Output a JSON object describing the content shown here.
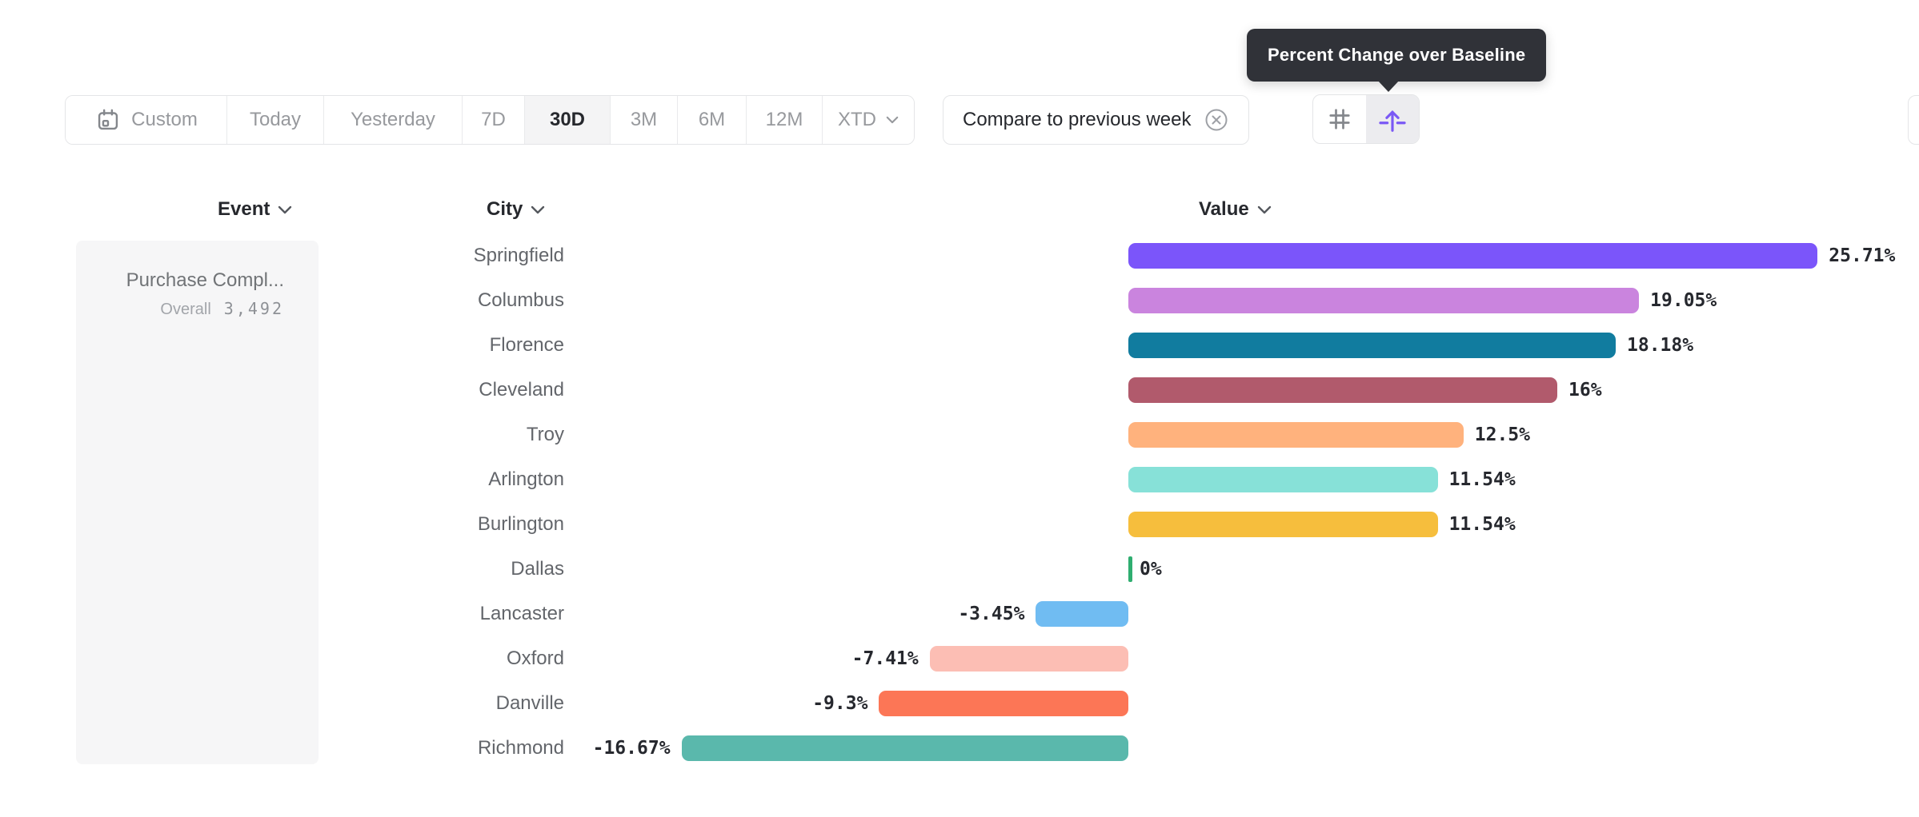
{
  "tooltip": {
    "text": "Percent Change over Baseline"
  },
  "toolbar": {
    "date_ranges": [
      {
        "label": "Custom",
        "icon": "calendar"
      },
      {
        "label": "Today"
      },
      {
        "label": "Yesterday"
      },
      {
        "label": "7D"
      },
      {
        "label": "30D",
        "active": true
      },
      {
        "label": "3M"
      },
      {
        "label": "6M"
      },
      {
        "label": "12M"
      },
      {
        "label": "XTD",
        "chevron": true
      }
    ],
    "active_range": "30D",
    "compare": {
      "label": "Compare to previous week",
      "close_icon": "circle-x"
    },
    "view_toggles": [
      {
        "name": "grid-view",
        "icon": "hash",
        "active": false
      },
      {
        "name": "percent-change-over-baseline",
        "icon": "arrow-up-from-baseline",
        "active": true
      }
    ]
  },
  "columns": {
    "event": "Event",
    "city": "City",
    "value": "Value"
  },
  "event_panel": {
    "title": "Purchase Compl...",
    "overall_label": "Overall",
    "overall_value": "3,492"
  },
  "chart_data": {
    "type": "bar",
    "orientation": "horizontal",
    "title": "Percent Change over Baseline",
    "value_unit": "%",
    "baseline": 0,
    "categories": [
      "Springfield",
      "Columbus",
      "Florence",
      "Cleveland",
      "Troy",
      "Arlington",
      "Burlington",
      "Dallas",
      "Lancaster",
      "Oxford",
      "Danville",
      "Richmond"
    ],
    "values": [
      25.71,
      19.05,
      18.18,
      16,
      12.5,
      11.54,
      11.54,
      0,
      -3.45,
      -7.41,
      -9.3,
      -16.67
    ],
    "labels": [
      "25.71%",
      "19.05%",
      "18.18%",
      "16%",
      "12.5%",
      "11.54%",
      "11.54%",
      "0%",
      "-3.45%",
      "-7.41%",
      "-9.3%",
      "-16.67%"
    ],
    "colors": [
      "#7B55FA",
      "#CA84DE",
      "#117C9F",
      "#B15A6C",
      "#FFB27D",
      "#87E1D8",
      "#F6BE3D",
      "#2FAE70",
      "#70BCF2",
      "#FCBEB4",
      "#FC7656",
      "#5AB8AC"
    ],
    "accent_color": "#7A58F5",
    "zero_tick_color": "#2FAE70"
  }
}
